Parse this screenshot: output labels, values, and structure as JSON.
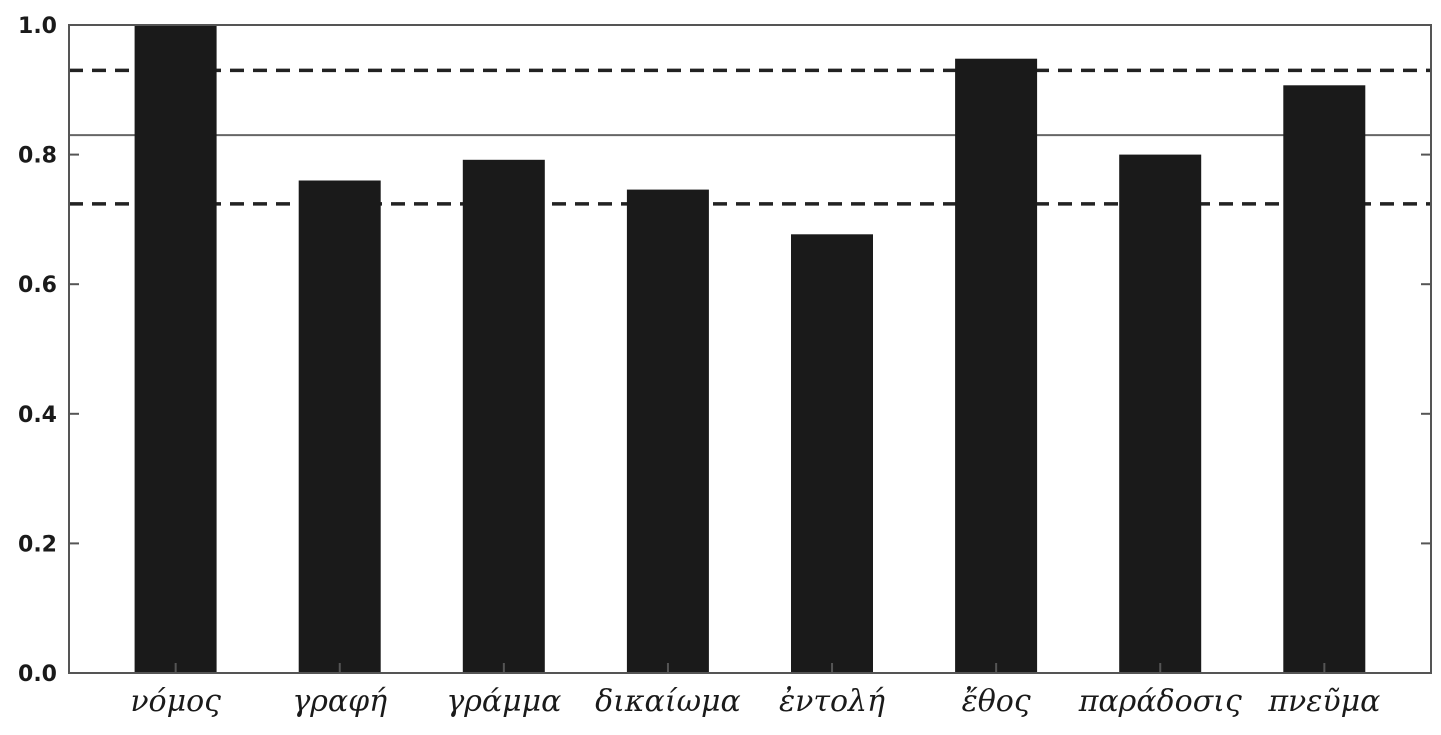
{
  "chart_data": {
    "type": "bar",
    "categories": [
      "νόμος",
      "γραφή",
      "γράμμα",
      "δικαίωμα",
      "ἐντολή",
      "ἔθος",
      "παράδοσις",
      "πνεῦμα"
    ],
    "values": [
      1.0,
      0.76,
      0.792,
      0.746,
      0.677,
      0.948,
      0.8,
      0.907
    ],
    "ylim": [
      0.0,
      1.0
    ],
    "yticks": [
      "0.0",
      "0.2",
      "0.4",
      "0.6",
      "0.8",
      "1.0"
    ],
    "reference_lines": [
      {
        "style": "solid",
        "value": 0.83
      },
      {
        "style": "dashed",
        "value": 0.93
      },
      {
        "style": "dashed",
        "value": 0.724
      }
    ],
    "bar_color": "#1a1a1a",
    "grid": false
  }
}
